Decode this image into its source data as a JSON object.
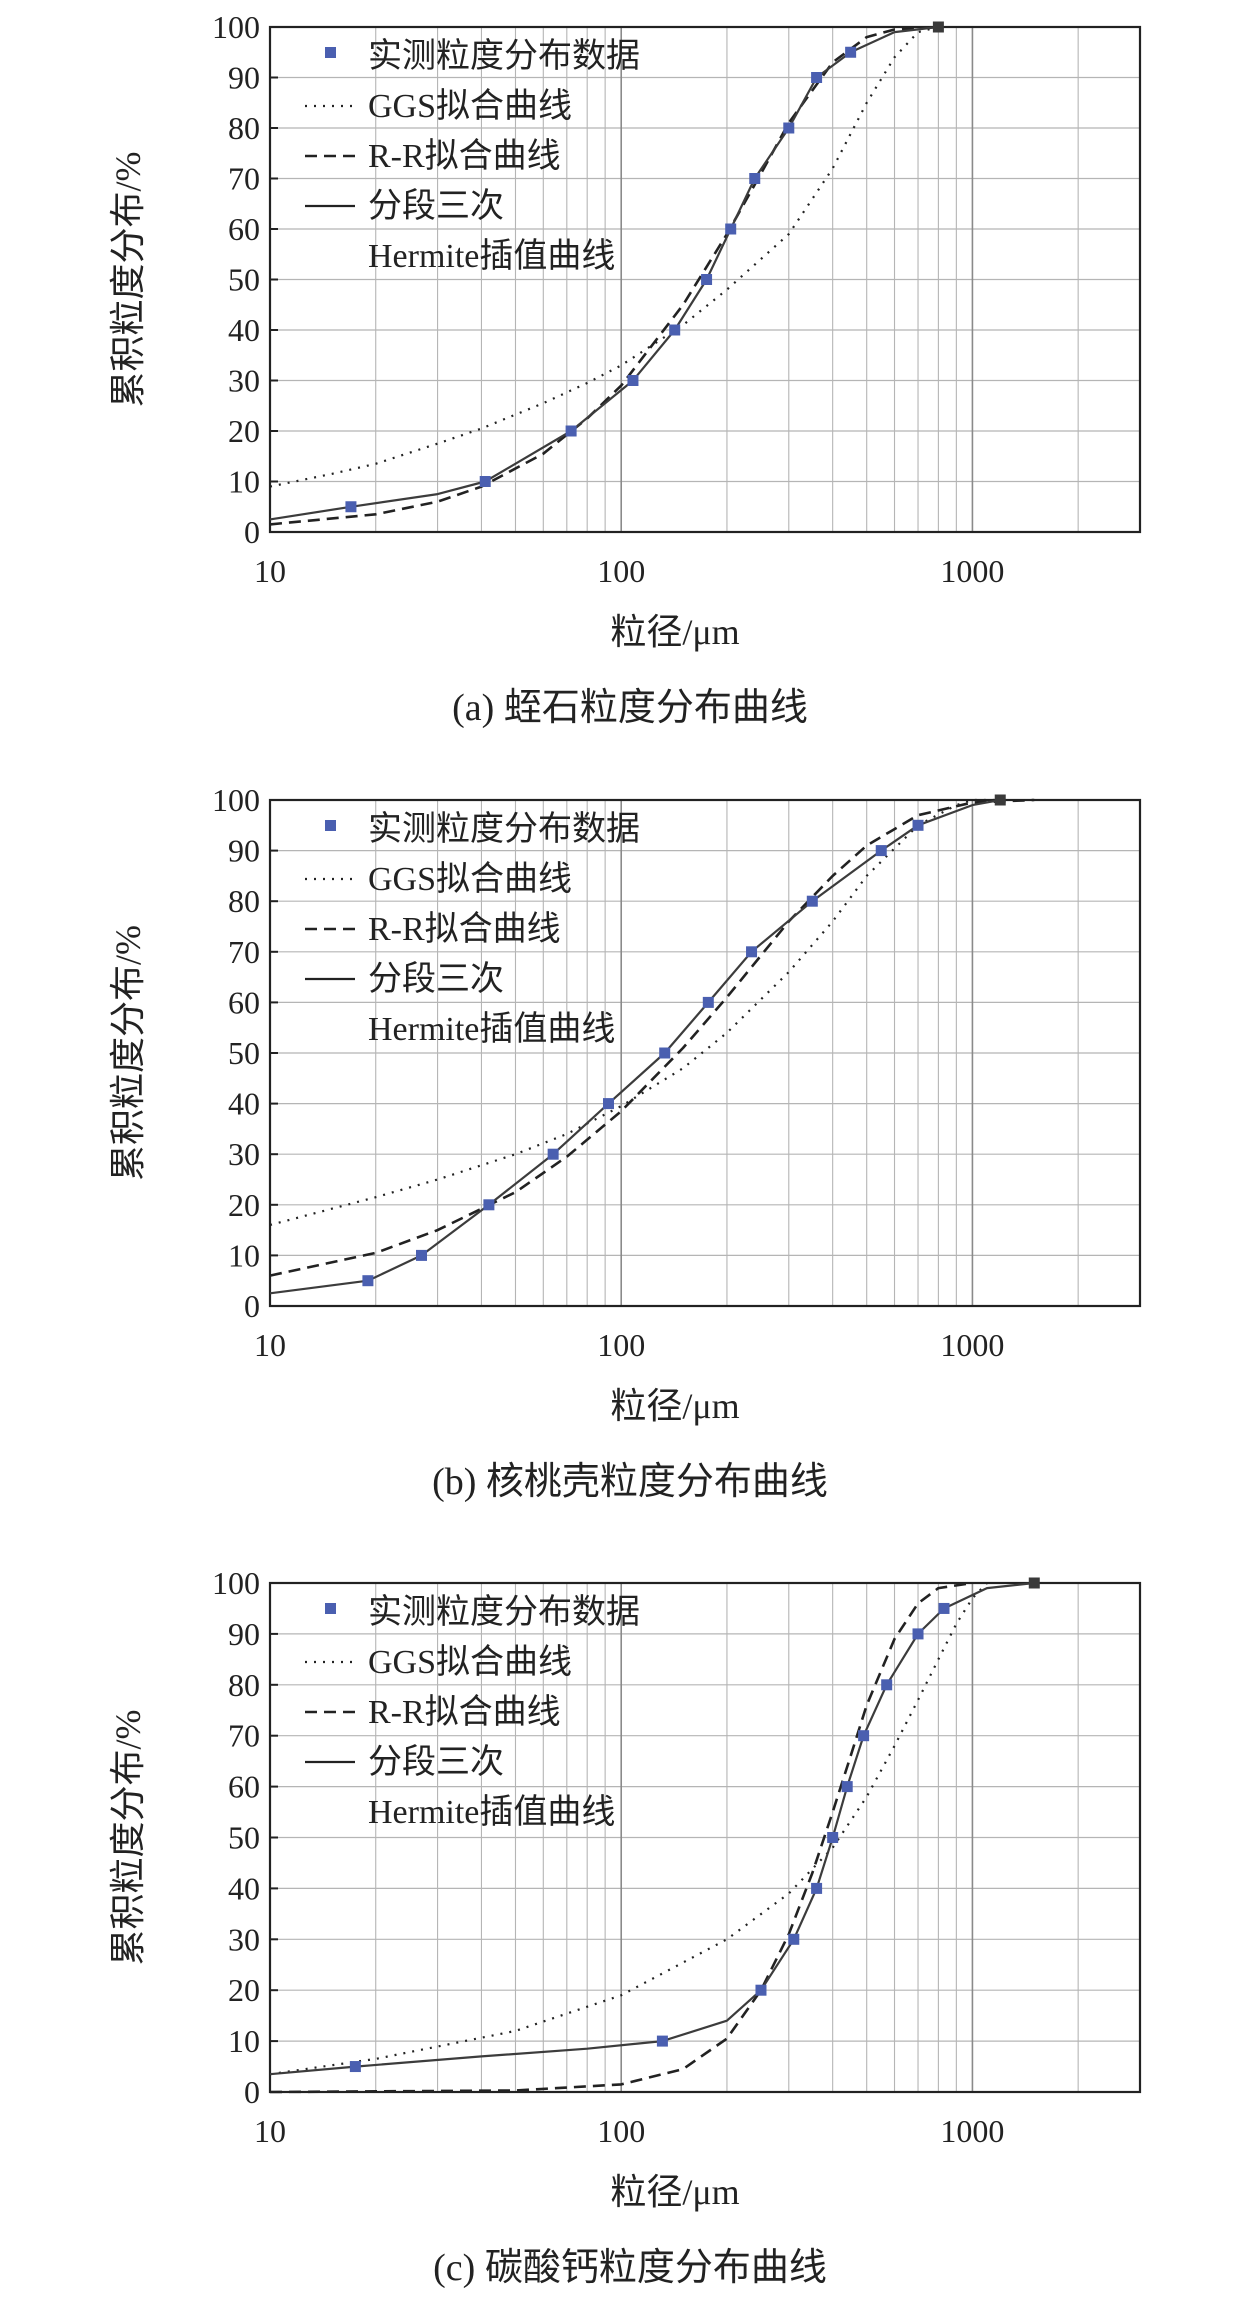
{
  "legend_labels": {
    "measured": "实测粒度分布数据",
    "ggs": "GGS拟合曲线",
    "rr": "R-R拟合曲线",
    "hermite_1": "分段三次",
    "hermite_2": "Hermite插值曲线"
  },
  "colors": {
    "marker": "#4a5fb0",
    "marker_dark": "#3a3a3a",
    "curve": "#222222",
    "grid": "#b5b5b5",
    "axis": "#222222"
  },
  "chart_data": [
    {
      "type": "line",
      "caption": "(a) 蛭石粒度分布曲线",
      "xlabel": "粒径/μm",
      "ylabel": "累积粒度分布/%",
      "xscale": "log",
      "xlim": [
        10,
        3000
      ],
      "ylim": [
        0,
        100
      ],
      "x_ticks": [
        "10",
        "100",
        "1000"
      ],
      "y_ticks": [
        "0",
        "10",
        "20",
        "30",
        "40",
        "50",
        "60",
        "70",
        "80",
        "90",
        "100"
      ],
      "grid": true,
      "legend_position": "top-left",
      "series": [
        {
          "name": "实测粒度分布数据",
          "kind": "markers",
          "x": [
            17,
            41,
            72,
            108,
            142,
            175,
            205,
            240,
            300,
            360,
            450,
            800
          ],
          "y": [
            5,
            10,
            20,
            30,
            40,
            50,
            60,
            70,
            80,
            90,
            95,
            100
          ]
        },
        {
          "name": "GGS拟合曲线",
          "kind": "dotted",
          "x": [
            10,
            15,
            20,
            30,
            40,
            60,
            80,
            100,
            150,
            200,
            300,
            400,
            500,
            600,
            700,
            800
          ],
          "y": [
            9,
            11.5,
            13.5,
            17.5,
            20.5,
            25.5,
            29.5,
            33,
            41,
            48,
            59,
            72,
            85,
            94,
            99,
            100
          ]
        },
        {
          "name": "R-R拟合曲线",
          "kind": "dashed",
          "x": [
            10,
            20,
            30,
            40,
            60,
            80,
            100,
            150,
            200,
            250,
            300,
            400,
            500,
            600,
            800
          ],
          "y": [
            1.5,
            3.5,
            6,
            9,
            15.5,
            22.5,
            29,
            45,
            59,
            71,
            81,
            93,
            98,
            99.5,
            100
          ]
        },
        {
          "name": "分段三次 Hermite插值曲线",
          "kind": "solid",
          "x": [
            10,
            17,
            30,
            41,
            72,
            108,
            142,
            175,
            205,
            240,
            300,
            360,
            450,
            600,
            800
          ],
          "y": [
            2.5,
            5,
            7.5,
            10,
            20,
            30,
            40,
            50,
            60,
            70,
            80,
            90,
            95,
            99,
            100
          ]
        }
      ]
    },
    {
      "type": "line",
      "caption": "(b) 核桃壳粒度分布曲线",
      "xlabel": "粒径/μm",
      "ylabel": "累积粒度分布/%",
      "xscale": "log",
      "xlim": [
        10,
        3000
      ],
      "ylim": [
        0,
        100
      ],
      "x_ticks": [
        "10",
        "100",
        "1000"
      ],
      "y_ticks": [
        "0",
        "10",
        "20",
        "30",
        "40",
        "50",
        "60",
        "70",
        "80",
        "90",
        "100"
      ],
      "grid": true,
      "legend_position": "top-left",
      "series": [
        {
          "name": "实测粒度分布数据",
          "kind": "markers",
          "x": [
            19,
            27,
            42,
            64,
            92,
            133,
            177,
            235,
            350,
            550,
            700,
            1200
          ],
          "y": [
            5,
            10,
            20,
            30,
            40,
            50,
            60,
            70,
            80,
            90,
            95,
            100
          ]
        },
        {
          "name": "GGS拟合曲线",
          "kind": "dotted",
          "x": [
            10,
            20,
            30,
            50,
            70,
            100,
            150,
            200,
            300,
            400,
            500,
            700,
            900,
            1000,
            1200
          ],
          "y": [
            16,
            21.5,
            25,
            30,
            34,
            39.5,
            47,
            54,
            66,
            76,
            85,
            95,
            99,
            100,
            100
          ]
        },
        {
          "name": "R-R拟合曲线",
          "kind": "dashed",
          "x": [
            10,
            20,
            30,
            50,
            70,
            100,
            150,
            200,
            300,
            400,
            500,
            700,
            1000,
            1500
          ],
          "y": [
            6,
            10.5,
            15,
            22.5,
            29.5,
            38.5,
            51,
            61,
            76,
            85,
            91,
            97,
            99.5,
            100
          ]
        },
        {
          "name": "分段三次 Hermite插值曲线",
          "kind": "solid",
          "x": [
            10,
            19,
            27,
            42,
            64,
            92,
            133,
            177,
            235,
            350,
            550,
            700,
            1000,
            1200
          ],
          "y": [
            2.5,
            5,
            10,
            20,
            30,
            40,
            50,
            60,
            70,
            80,
            90,
            95,
            99,
            100
          ]
        }
      ]
    },
    {
      "type": "line",
      "caption": "(c) 碳酸钙粒度分布曲线",
      "xlabel": "粒径/μm",
      "ylabel": "累积粒度分布/%",
      "xscale": "log",
      "xlim": [
        10,
        3000
      ],
      "ylim": [
        0,
        100
      ],
      "x_ticks": [
        "10",
        "100",
        "1000"
      ],
      "y_ticks": [
        "0",
        "10",
        "20",
        "30",
        "40",
        "50",
        "60",
        "70",
        "80",
        "90",
        "100"
      ],
      "grid": true,
      "legend_position": "top-left",
      "series": [
        {
          "name": "实测粒度分布数据",
          "kind": "markers",
          "x": [
            17.5,
            131,
            250,
            310,
            360,
            400,
            440,
            490,
            570,
            700,
            830,
            1500
          ],
          "y": [
            5,
            10,
            20,
            30,
            40,
            50,
            60,
            70,
            80,
            90,
            95,
            100
          ]
        },
        {
          "name": "GGS拟合曲线",
          "kind": "dotted",
          "x": [
            10,
            20,
            50,
            100,
            200,
            300,
            400,
            500,
            600,
            700,
            800,
            900,
            1000,
            1100
          ],
          "y": [
            3.5,
            6.5,
            12,
            19,
            30,
            39,
            48,
            58,
            68,
            77,
            85,
            92,
            97,
            100
          ]
        },
        {
          "name": "R-R拟合曲线",
          "kind": "dashed",
          "x": [
            10,
            50,
            100,
            150,
            200,
            250,
            300,
            350,
            400,
            450,
            500,
            600,
            700,
            800,
            1000
          ],
          "y": [
            0,
            0.3,
            1.5,
            4.5,
            10.5,
            20,
            31,
            43,
            55,
            66,
            76,
            89,
            96,
            99,
            100
          ]
        },
        {
          "name": "分段三次 Hermite插值曲线",
          "kind": "solid",
          "x": [
            10,
            17.5,
            40,
            80,
            131,
            200,
            250,
            310,
            360,
            400,
            440,
            490,
            570,
            700,
            830,
            1100,
            1500
          ],
          "y": [
            3.5,
            5,
            7,
            8.5,
            10,
            14,
            20,
            30,
            40,
            50,
            60,
            70,
            80,
            90,
            95,
            99,
            100
          ]
        }
      ]
    }
  ]
}
